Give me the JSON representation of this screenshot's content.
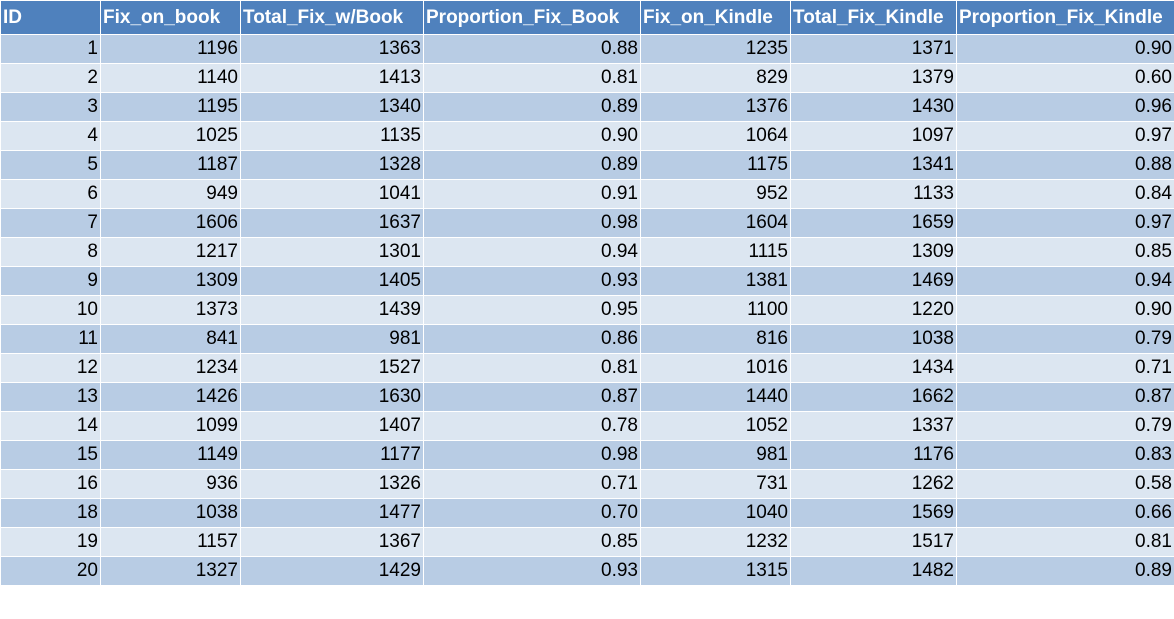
{
  "table": {
    "header": [
      "ID",
      "Fix_on_book",
      "Total_Fix_w/Book",
      "Proportion_Fix_Book",
      "Fix_on_Kindle",
      "Total_Fix_Kindle",
      "Proportion_Fix_Kindle"
    ],
    "rows": [
      [
        "1",
        "1196",
        "1363",
        "0.88",
        "1235",
        "1371",
        "0.90"
      ],
      [
        "2",
        "1140",
        "1413",
        "0.81",
        "829",
        "1379",
        "0.60"
      ],
      [
        "3",
        "1195",
        "1340",
        "0.89",
        "1376",
        "1430",
        "0.96"
      ],
      [
        "4",
        "1025",
        "1135",
        "0.90",
        "1064",
        "1097",
        "0.97"
      ],
      [
        "5",
        "1187",
        "1328",
        "0.89",
        "1175",
        "1341",
        "0.88"
      ],
      [
        "6",
        "949",
        "1041",
        "0.91",
        "952",
        "1133",
        "0.84"
      ],
      [
        "7",
        "1606",
        "1637",
        "0.98",
        "1604",
        "1659",
        "0.97"
      ],
      [
        "8",
        "1217",
        "1301",
        "0.94",
        "1115",
        "1309",
        "0.85"
      ],
      [
        "9",
        "1309",
        "1405",
        "0.93",
        "1381",
        "1469",
        "0.94"
      ],
      [
        "10",
        "1373",
        "1439",
        "0.95",
        "1100",
        "1220",
        "0.90"
      ],
      [
        "11",
        "841",
        "981",
        "0.86",
        "816",
        "1038",
        "0.79"
      ],
      [
        "12",
        "1234",
        "1527",
        "0.81",
        "1016",
        "1434",
        "0.71"
      ],
      [
        "13",
        "1426",
        "1630",
        "0.87",
        "1440",
        "1662",
        "0.87"
      ],
      [
        "14",
        "1099",
        "1407",
        "0.78",
        "1052",
        "1337",
        "0.79"
      ],
      [
        "15",
        "1149",
        "1177",
        "0.98",
        "981",
        "1176",
        "0.83"
      ],
      [
        "16",
        "936",
        "1326",
        "0.71",
        "731",
        "1262",
        "0.58"
      ],
      [
        "18",
        "1038",
        "1477",
        "0.70",
        "1040",
        "1569",
        "0.66"
      ],
      [
        "19",
        "1157",
        "1367",
        "0.85",
        "1232",
        "1517",
        "0.81"
      ],
      [
        "20",
        "1327",
        "1429",
        "0.93",
        "1315",
        "1482",
        "0.89"
      ]
    ]
  }
}
